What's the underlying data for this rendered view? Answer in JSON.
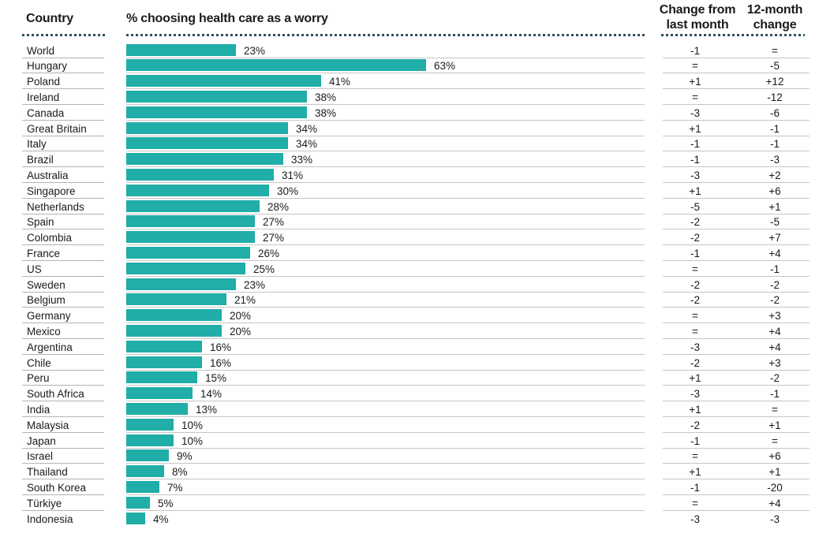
{
  "colors": {
    "bar": "#21ada8",
    "dotted_line": "#2f4f5f",
    "row_line": "#c6c6c6",
    "country_line": "#b3b3b3",
    "text": "#1a1a1a"
  },
  "chart_data": {
    "type": "bar",
    "orientation": "horizontal",
    "title": "% choosing health care as a worry",
    "country_header": "Country",
    "change_month_header": "Change from last month",
    "change_year_header": "12-month change",
    "unit": "%",
    "xlim": [
      0,
      100
    ],
    "grid": false,
    "rows": [
      {
        "country": "World",
        "value": 23,
        "label": "23%",
        "change_month": "-1",
        "change_year": "="
      },
      {
        "country": "Hungary",
        "value": 63,
        "label": "63%",
        "change_month": "=",
        "change_year": "-5"
      },
      {
        "country": "Poland",
        "value": 41,
        "label": "41%",
        "change_month": "+1",
        "change_year": "+12"
      },
      {
        "country": "Ireland",
        "value": 38,
        "label": "38%",
        "change_month": "=",
        "change_year": "-12"
      },
      {
        "country": "Canada",
        "value": 38,
        "label": "38%",
        "change_month": "-3",
        "change_year": "-6"
      },
      {
        "country": "Great Britain",
        "value": 34,
        "label": "34%",
        "change_month": "+1",
        "change_year": "-1"
      },
      {
        "country": "Italy",
        "value": 34,
        "label": "34%",
        "change_month": "-1",
        "change_year": "-1"
      },
      {
        "country": "Brazil",
        "value": 33,
        "label": "33%",
        "change_month": "-1",
        "change_year": "-3"
      },
      {
        "country": "Australia",
        "value": 31,
        "label": "31%",
        "change_month": "-3",
        "change_year": "+2"
      },
      {
        "country": "Singapore",
        "value": 30,
        "label": "30%",
        "change_month": "+1",
        "change_year": "+6"
      },
      {
        "country": "Netherlands",
        "value": 28,
        "label": "28%",
        "change_month": "-5",
        "change_year": "+1"
      },
      {
        "country": "Spain",
        "value": 27,
        "label": "27%",
        "change_month": "-2",
        "change_year": "-5"
      },
      {
        "country": "Colombia",
        "value": 27,
        "label": "27%",
        "change_month": "-2",
        "change_year": "+7"
      },
      {
        "country": "France",
        "value": 26,
        "label": "26%",
        "change_month": "-1",
        "change_year": "+4"
      },
      {
        "country": "US",
        "value": 25,
        "label": "25%",
        "change_month": "=",
        "change_year": "-1"
      },
      {
        "country": "Sweden",
        "value": 23,
        "label": "23%",
        "change_month": "-2",
        "change_year": "-2"
      },
      {
        "country": "Belgium",
        "value": 21,
        "label": "21%",
        "change_month": "-2",
        "change_year": "-2"
      },
      {
        "country": "Germany",
        "value": 20,
        "label": "20%",
        "change_month": "=",
        "change_year": "+3"
      },
      {
        "country": "Mexico",
        "value": 20,
        "label": "20%",
        "change_month": "=",
        "change_year": "+4"
      },
      {
        "country": "Argentina",
        "value": 16,
        "label": "16%",
        "change_month": "-3",
        "change_year": "+4"
      },
      {
        "country": "Chile",
        "value": 16,
        "label": "16%",
        "change_month": "-2",
        "change_year": "+3"
      },
      {
        "country": "Peru",
        "value": 15,
        "label": "15%",
        "change_month": "+1",
        "change_year": "-2"
      },
      {
        "country": "South Africa",
        "value": 14,
        "label": "14%",
        "change_month": "-3",
        "change_year": "-1"
      },
      {
        "country": "India",
        "value": 13,
        "label": "13%",
        "change_month": "+1",
        "change_year": "="
      },
      {
        "country": "Malaysia",
        "value": 10,
        "label": "10%",
        "change_month": "-2",
        "change_year": "+1"
      },
      {
        "country": "Japan",
        "value": 10,
        "label": "10%",
        "change_month": "-1",
        "change_year": "="
      },
      {
        "country": "Israel",
        "value": 9,
        "label": "9%",
        "change_month": "=",
        "change_year": "+6"
      },
      {
        "country": "Thailand",
        "value": 8,
        "label": "8%",
        "change_month": "+1",
        "change_year": "+1"
      },
      {
        "country": "South Korea",
        "value": 7,
        "label": "7%",
        "change_month": "-1",
        "change_year": "-20"
      },
      {
        "country": "Türkiye",
        "value": 5,
        "label": "5%",
        "change_month": "=",
        "change_year": "+4"
      },
      {
        "country": "Indonesia",
        "value": 4,
        "label": "4%",
        "change_month": "-3",
        "change_year": "-3"
      }
    ]
  }
}
